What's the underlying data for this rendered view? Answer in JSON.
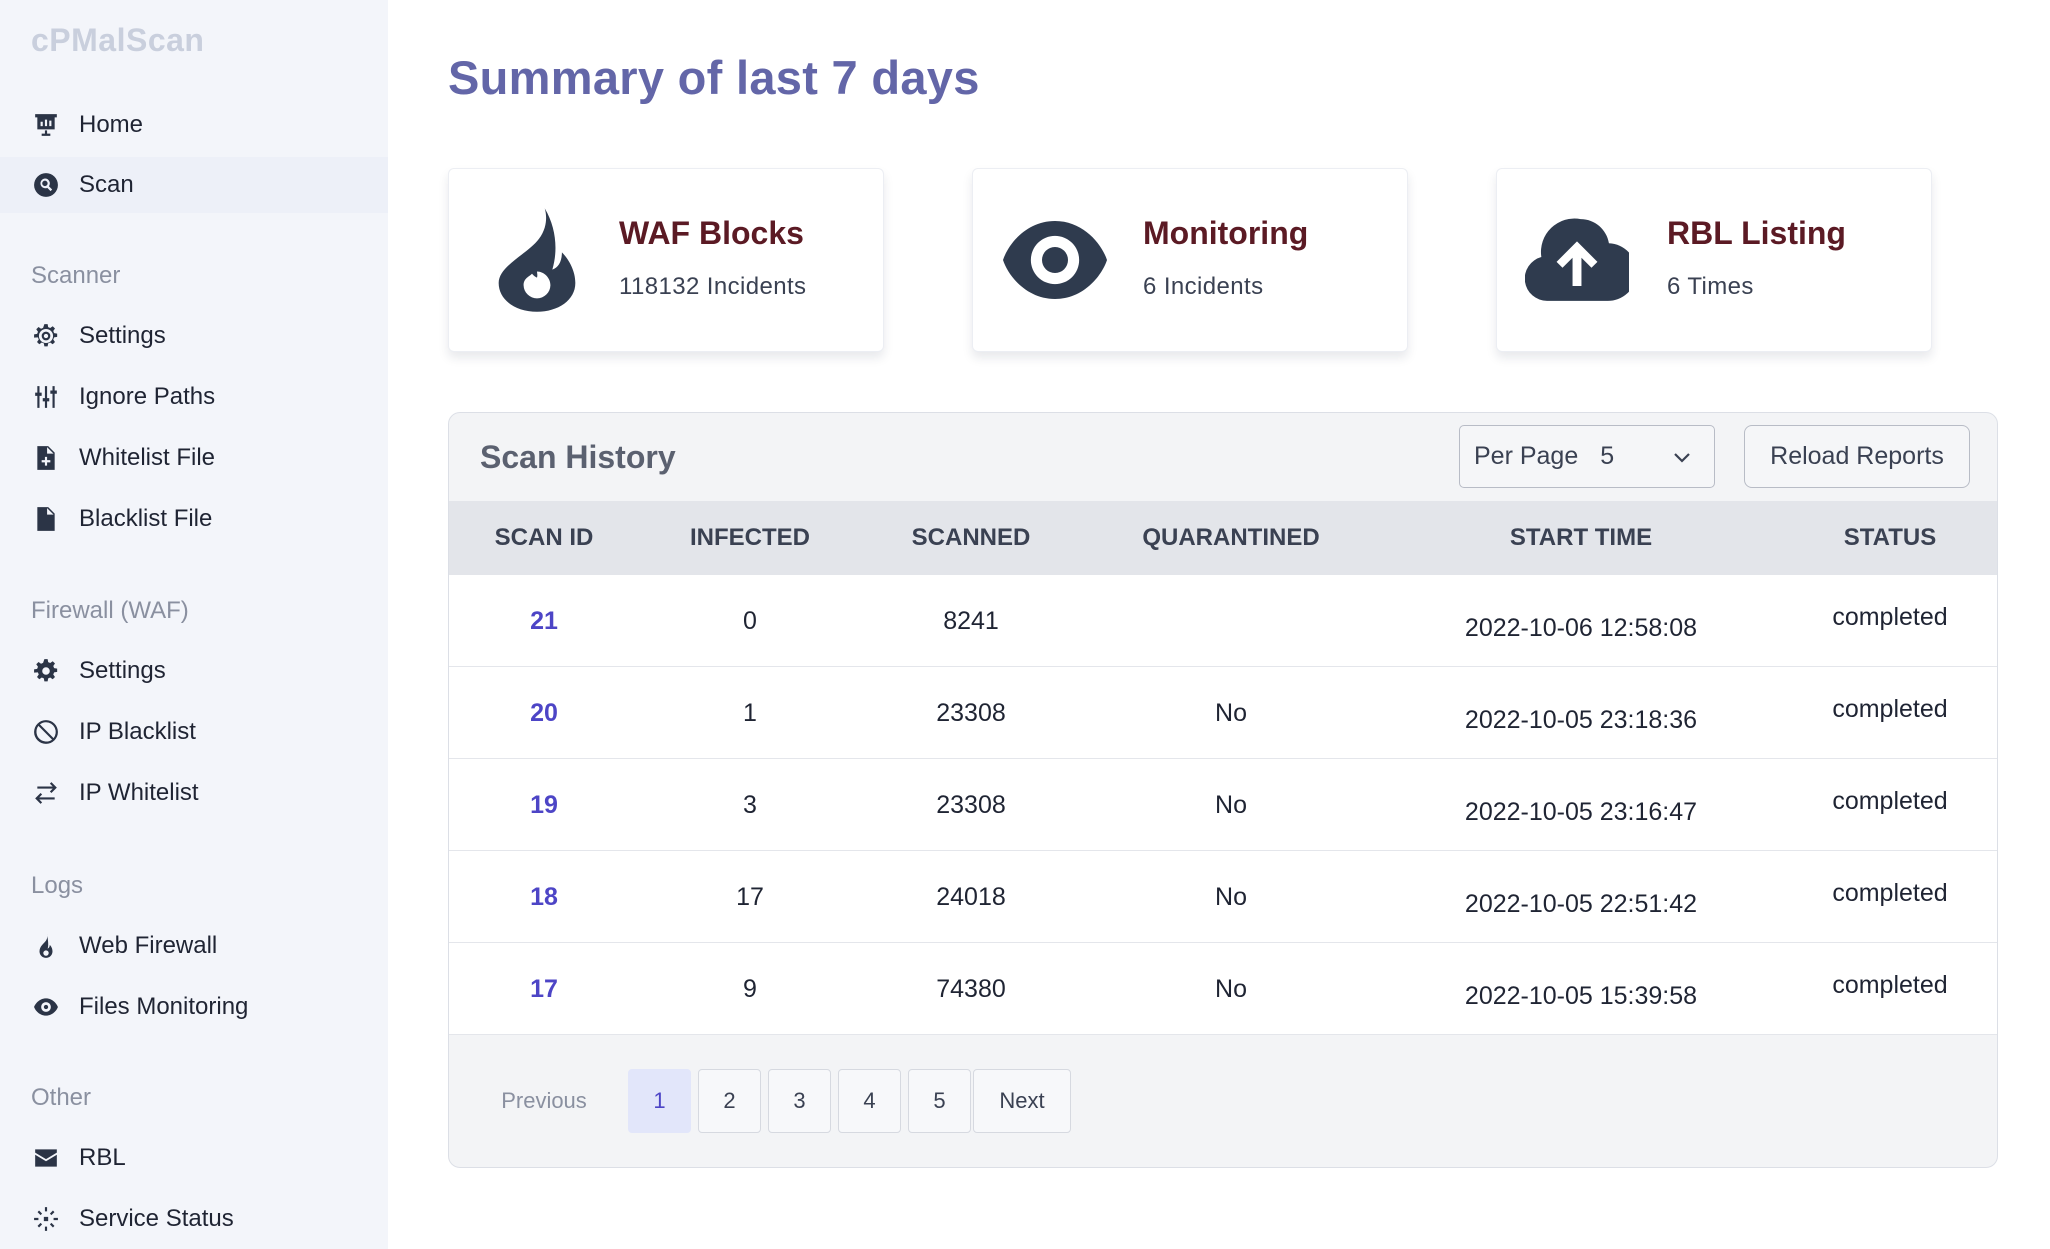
{
  "app": {
    "brand": "cPMalScan"
  },
  "sidebar": {
    "top_items": [
      {
        "label": "Home",
        "icon": "chart-board-icon"
      },
      {
        "label": "Scan",
        "icon": "search-circle-icon"
      }
    ],
    "sections": [
      {
        "title": "Scanner",
        "items": [
          {
            "label": "Settings",
            "icon": "gear-outline-icon"
          },
          {
            "label": "Ignore Paths",
            "icon": "sliders-icon"
          },
          {
            "label": "Whitelist File",
            "icon": "file-plus-icon"
          },
          {
            "label": "Blacklist File",
            "icon": "file-icon"
          }
        ]
      },
      {
        "title": "Firewall (WAF)",
        "items": [
          {
            "label": "Settings",
            "icon": "gear-icon"
          },
          {
            "label": "IP Blacklist",
            "icon": "ban-icon"
          },
          {
            "label": "IP Whitelist",
            "icon": "arrows-exchange-icon"
          }
        ]
      },
      {
        "title": "Logs",
        "items": [
          {
            "label": "Web Firewall",
            "icon": "fire-icon"
          },
          {
            "label": "Files Monitoring",
            "icon": "eye-icon"
          }
        ]
      },
      {
        "title": "Other",
        "items": [
          {
            "label": "RBL",
            "icon": "envelope-icon"
          },
          {
            "label": "Service Status",
            "icon": "spinner-dashed-icon"
          }
        ]
      }
    ],
    "active_item": "Scan"
  },
  "main": {
    "title": "Summary of last 7 days",
    "cards": [
      {
        "title": "WAF Blocks",
        "subtitle": "118132 Incidents",
        "icon": "fire-icon"
      },
      {
        "title": "Monitoring",
        "subtitle": "6 Incidents",
        "icon": "eye-icon"
      },
      {
        "title": "RBL Listing",
        "subtitle": "6 Times",
        "icon": "cloud-upload-icon"
      }
    ]
  },
  "scan_history": {
    "title": "Scan History",
    "per_page_label": "Per Page",
    "per_page_value": "5",
    "reload_label": "Reload Reports",
    "columns": [
      "SCAN ID",
      "INFECTED",
      "SCANNED",
      "QUARANTINED",
      "START TIME",
      "STATUS"
    ],
    "rows": [
      {
        "id": "21",
        "infected": "0",
        "scanned": "8241",
        "quarantined": "",
        "start_time": "2022-10-06 12:58:08",
        "status": "completed"
      },
      {
        "id": "20",
        "infected": "1",
        "scanned": "23308",
        "quarantined": "No",
        "start_time": "2022-10-05 23:18:36",
        "status": "completed"
      },
      {
        "id": "19",
        "infected": "3",
        "scanned": "23308",
        "quarantined": "No",
        "start_time": "2022-10-05 23:16:47",
        "status": "completed"
      },
      {
        "id": "18",
        "infected": "17",
        "scanned": "24018",
        "quarantined": "No",
        "start_time": "2022-10-05 22:51:42",
        "status": "completed"
      },
      {
        "id": "17",
        "infected": "9",
        "scanned": "74380",
        "quarantined": "No",
        "start_time": "2022-10-05 15:39:58",
        "status": "completed"
      }
    ],
    "pagination": {
      "previous_label": "Previous",
      "next_label": "Next",
      "pages": [
        "1",
        "2",
        "3",
        "4",
        "5"
      ],
      "current_page": "1"
    }
  },
  "colors": {
    "accent_title": "#6366a8",
    "card_title": "#5b1a24",
    "link_id": "#4d45c6",
    "sidebar_bg": "#f3f5fa"
  }
}
